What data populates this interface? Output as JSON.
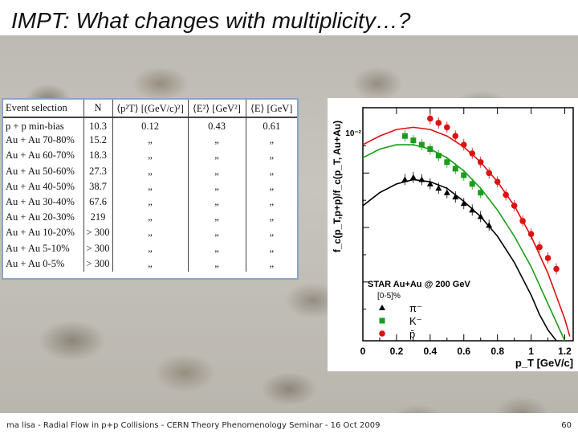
{
  "slide": {
    "title": "IMPT: What changes with multiplicity…?",
    "footer": "ma lisa - Radial Flow in p+p Collisions - CERN Theory Phenomenology Seminar - 16 Oct 2009",
    "page_number": "60"
  },
  "table": {
    "headers": [
      "Event selection",
      "N",
      "⟨p²T⟩ [(GeV/c)²]",
      "⟨E²⟩ [GeV²]",
      "⟨E⟩ [GeV]"
    ],
    "rows": [
      {
        "selection": "p + p min-bias",
        "n": "10.3",
        "pt2": "0.12",
        "e2": "0.43",
        "e": "0.61"
      },
      {
        "selection": "Au + Au 70-80%",
        "n": "15.2",
        "pt2": "„",
        "e2": "„",
        "e": "„"
      },
      {
        "selection": "Au + Au 60-70%",
        "n": "18.3",
        "pt2": "„",
        "e2": "„",
        "e": "„"
      },
      {
        "selection": "Au + Au 50-60%",
        "n": "27.3",
        "pt2": "„",
        "e2": "„",
        "e": "„"
      },
      {
        "selection": "Au + Au 40-50%",
        "n": "38.7",
        "pt2": "„",
        "e2": "„",
        "e": "„"
      },
      {
        "selection": "Au + Au 30-40%",
        "n": "67.6",
        "pt2": "„",
        "e2": "„",
        "e": "„"
      },
      {
        "selection": "Au + Au 20-30%",
        "n": "219",
        "pt2": "„",
        "e2": "„",
        "e": "„"
      },
      {
        "selection": "Au + Au 10-20%",
        "n": "> 300",
        "pt2": "„",
        "e2": "„",
        "e": "„"
      },
      {
        "selection": "Au + Au 5-10%",
        "n": "> 300",
        "pt2": "„",
        "e2": "„",
        "e": "„"
      },
      {
        "selection": "Au + Au 0-5%",
        "n": "> 300",
        "pt2": "„",
        "e2": "„",
        "e": "„"
      }
    ]
  },
  "chart_data": {
    "type": "scatter",
    "ylabel": "f_c(p_T,p+p)/f_c(p_T, Au+Au)",
    "xlabel": "p_T [GeV/c]",
    "y_tick_label": "10⁻²",
    "x_ticks": [
      "0",
      "0.2",
      "0.4",
      "0.6",
      "0.8",
      "1",
      "1.2"
    ],
    "xlim": [
      0,
      1.25
    ],
    "annotation_title": "STAR Au+Au @ 200 GeV",
    "annotation_centrality": "[0-5]%",
    "series": [
      {
        "name": "π⁻",
        "color": "#000000",
        "marker": "triangle",
        "x": [
          0.25,
          0.3,
          0.35,
          0.4,
          0.45,
          0.5,
          0.55,
          0.6,
          0.65,
          0.7,
          0.75
        ],
        "y": [
          0.72,
          0.73,
          0.72,
          0.7,
          0.68,
          0.66,
          0.64,
          0.61,
          0.58,
          0.55,
          0.51
        ]
      },
      {
        "name": "K⁻",
        "color": "#1a9e1a",
        "marker": "square",
        "x": [
          0.25,
          0.3,
          0.35,
          0.4,
          0.45,
          0.5,
          0.55,
          0.6,
          0.65,
          0.7
        ],
        "y": [
          0.92,
          0.9,
          0.88,
          0.86,
          0.83,
          0.8,
          0.77,
          0.74,
          0.7,
          0.66
        ]
      },
      {
        "name": "p̄",
        "color": "#dd1111",
        "marker": "circle",
        "x": [
          0.4,
          0.45,
          0.5,
          0.55,
          0.6,
          0.65,
          0.7,
          0.75,
          0.8,
          0.85,
          0.9,
          0.95,
          1.0,
          1.05,
          1.1,
          1.15
        ],
        "y": [
          1.0,
          0.98,
          0.96,
          0.92,
          0.88,
          0.84,
          0.8,
          0.75,
          0.71,
          0.65,
          0.6,
          0.53,
          0.47,
          0.41,
          0.36,
          0.31
        ]
      }
    ],
    "curves": [
      {
        "name": "black-fit",
        "color": "#000000",
        "x": [
          0,
          0.1,
          0.2,
          0.3,
          0.4,
          0.5,
          0.6,
          0.7,
          0.8,
          0.9,
          1.0,
          1.05,
          1.1,
          1.15
        ],
        "y": [
          0.6,
          0.66,
          0.7,
          0.72,
          0.71,
          0.68,
          0.62,
          0.55,
          0.46,
          0.34,
          0.19,
          0.1,
          0.03,
          -0.02
        ]
      },
      {
        "name": "green-fit",
        "color": "#1a9e1a",
        "x": [
          0,
          0.1,
          0.2,
          0.3,
          0.4,
          0.5,
          0.6,
          0.7,
          0.8,
          0.9,
          1.0,
          1.1,
          1.2
        ],
        "y": [
          0.82,
          0.86,
          0.88,
          0.88,
          0.86,
          0.82,
          0.76,
          0.68,
          0.58,
          0.46,
          0.32,
          0.15,
          -0.02
        ]
      },
      {
        "name": "red-fit",
        "color": "#dd1111",
        "x": [
          0,
          0.1,
          0.2,
          0.3,
          0.4,
          0.5,
          0.6,
          0.7,
          0.8,
          0.9,
          1.0,
          1.1,
          1.2,
          1.23
        ],
        "y": [
          0.88,
          0.92,
          0.95,
          0.96,
          0.95,
          0.92,
          0.87,
          0.8,
          0.71,
          0.6,
          0.46,
          0.29,
          0.08,
          0.0
        ]
      }
    ]
  }
}
